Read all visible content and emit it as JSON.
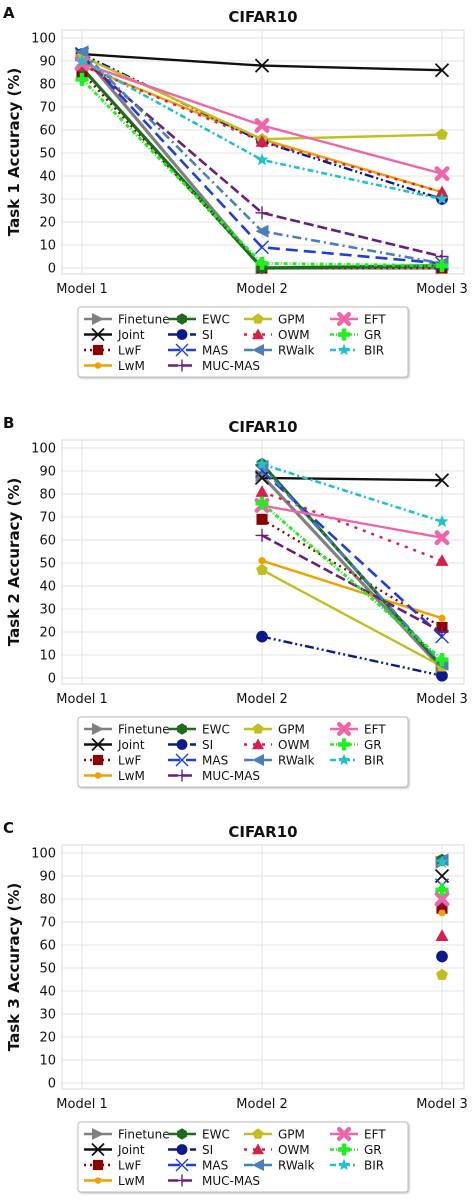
{
  "colors": {
    "Finetune": "#808080",
    "Joint": "#111111",
    "LwF": "#8b0000",
    "LwM": "#f0a000",
    "EWC": "#1e6b1e",
    "SI": "#0a1a8c",
    "MAS": "#1f3fd6",
    "MUC-MAS": "#6a1f7a",
    "GPM": "#bfbf1f",
    "OWM": "#d61f4a",
    "RWalk": "#4a7fb8",
    "EFT": "#ee66aa",
    "GR": "#22ee22",
    "BIR": "#22c0c8"
  },
  "legend_order": [
    "Finetune",
    "Joint",
    "LwF",
    "LwM",
    "EWC",
    "SI",
    "MAS",
    "MUC-MAS",
    "GPM",
    "OWM",
    "RWalk",
    "EFT",
    "GR",
    "BIR"
  ],
  "chart_data": [
    {
      "panel": "A",
      "type": "line",
      "title": "CIFAR10",
      "ylabel": "Task 1 Accuracy (%)",
      "categories": [
        "Model 1",
        "Model 2",
        "Model 3"
      ],
      "ylim": [
        0,
        100
      ],
      "yticks": [
        "0",
        "10",
        "20",
        "30",
        "40",
        "50",
        "60",
        "70",
        "80",
        "90",
        "100"
      ],
      "grid": true,
      "legend_position": "bottom",
      "series": [
        {
          "name": "Finetune",
          "values": [
            93,
            0,
            0
          ]
        },
        {
          "name": "Joint",
          "values": [
            93,
            88,
            86
          ]
        },
        {
          "name": "LwF",
          "values": [
            85,
            0,
            0
          ]
        },
        {
          "name": "LwM",
          "values": [
            88,
            56,
            33
          ]
        },
        {
          "name": "EWC",
          "values": [
            87,
            0,
            1
          ]
        },
        {
          "name": "SI",
          "values": [
            93,
            55,
            30
          ]
        },
        {
          "name": "MAS",
          "values": [
            93,
            9,
            2
          ]
        },
        {
          "name": "MUC-MAS",
          "values": [
            91,
            24,
            5
          ]
        },
        {
          "name": "GPM",
          "values": [
            92,
            56,
            58
          ]
        },
        {
          "name": "OWM",
          "values": [
            88,
            55,
            33
          ]
        },
        {
          "name": "RWalk",
          "values": [
            94,
            16,
            2
          ]
        },
        {
          "name": "EFT",
          "values": [
            89,
            62,
            41
          ]
        },
        {
          "name": "GR",
          "values": [
            82,
            2,
            1
          ]
        },
        {
          "name": "BIR",
          "values": [
            90,
            47,
            30
          ]
        }
      ]
    },
    {
      "panel": "B",
      "type": "line",
      "title": "CIFAR10",
      "ylabel": "Task 2 Accuracy (%)",
      "categories": [
        "Model 1",
        "Model 2",
        "Model 3"
      ],
      "ylim": [
        0,
        100
      ],
      "yticks": [
        "0",
        "10",
        "20",
        "30",
        "40",
        "50",
        "60",
        "70",
        "80",
        "90",
        "100"
      ],
      "grid": true,
      "legend_position": "bottom",
      "series": [
        {
          "name": "Finetune",
          "values": [
            null,
            88,
            4
          ]
        },
        {
          "name": "Joint",
          "values": [
            null,
            87,
            86
          ]
        },
        {
          "name": "LwF",
          "values": [
            null,
            69,
            22
          ]
        },
        {
          "name": "LwM",
          "values": [
            null,
            51,
            26
          ]
        },
        {
          "name": "EWC",
          "values": [
            null,
            93,
            5
          ]
        },
        {
          "name": "SI",
          "values": [
            null,
            18,
            1
          ]
        },
        {
          "name": "MAS",
          "values": [
            null,
            90,
            18
          ]
        },
        {
          "name": "MUC-MAS",
          "values": [
            null,
            62,
            20
          ]
        },
        {
          "name": "GPM",
          "values": [
            null,
            47,
            5
          ]
        },
        {
          "name": "OWM",
          "values": [
            null,
            81,
            51
          ]
        },
        {
          "name": "RWalk",
          "values": [
            null,
            92,
            6
          ]
        },
        {
          "name": "EFT",
          "values": [
            null,
            75,
            61
          ]
        },
        {
          "name": "GR",
          "values": [
            null,
            76,
            8
          ]
        },
        {
          "name": "BIR",
          "values": [
            null,
            93,
            68
          ]
        }
      ]
    },
    {
      "panel": "C",
      "type": "scatter",
      "title": "CIFAR10",
      "ylabel": "Task 3 Accuracy (%)",
      "categories": [
        "Model 1",
        "Model 2",
        "Model 3"
      ],
      "ylim": [
        0,
        100
      ],
      "yticks": [
        "0",
        "10",
        "20",
        "30",
        "40",
        "50",
        "60",
        "70",
        "80",
        "90",
        "100"
      ],
      "grid": true,
      "legend_position": "bottom",
      "series": [
        {
          "name": "Finetune",
          "values": [
            null,
            null,
            96
          ]
        },
        {
          "name": "Joint",
          "values": [
            null,
            null,
            90
          ]
        },
        {
          "name": "LwF",
          "values": [
            null,
            null,
            76
          ]
        },
        {
          "name": "LwM",
          "values": [
            null,
            null,
            74
          ]
        },
        {
          "name": "EWC",
          "values": [
            null,
            null,
            97
          ]
        },
        {
          "name": "SI",
          "values": [
            null,
            null,
            55
          ]
        },
        {
          "name": "MAS",
          "values": [
            null,
            null,
            86
          ]
        },
        {
          "name": "MUC-MAS",
          "values": [
            null,
            null,
            78
          ]
        },
        {
          "name": "GPM",
          "values": [
            null,
            null,
            47
          ]
        },
        {
          "name": "OWM",
          "values": [
            null,
            null,
            64
          ]
        },
        {
          "name": "RWalk",
          "values": [
            null,
            null,
            97
          ]
        },
        {
          "name": "EFT",
          "values": [
            null,
            null,
            80
          ]
        },
        {
          "name": "GR",
          "values": [
            null,
            null,
            84
          ]
        },
        {
          "name": "BIR",
          "values": [
            null,
            null,
            96
          ]
        }
      ]
    }
  ]
}
